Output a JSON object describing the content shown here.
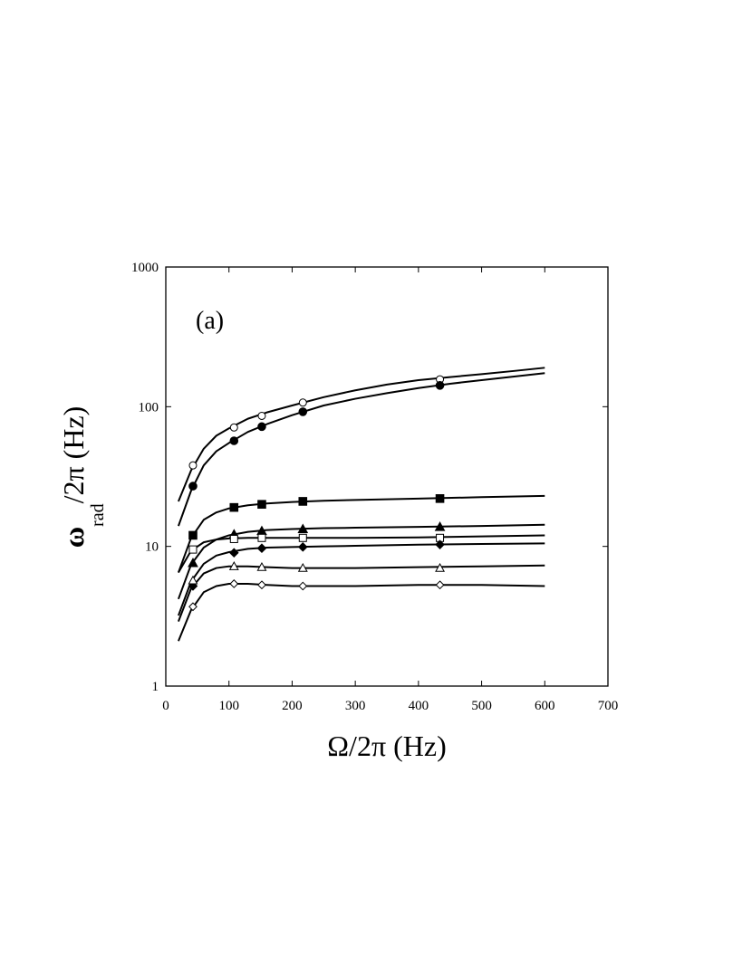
{
  "chart_data": {
    "type": "line",
    "panel_label": "(a)",
    "xlabel": "Ω/2π (Hz)",
    "ylabel_main": "ω",
    "ylabel_sub": "rad",
    "ylabel_rest": "/2π (Hz)",
    "xlim": [
      0,
      700
    ],
    "ylim": [
      1,
      1000
    ],
    "yscale": "log",
    "grid": false,
    "x_ticks": [
      0,
      100,
      200,
      300,
      400,
      500,
      600,
      700
    ],
    "x_tick_labels": [
      "0",
      "100",
      "200",
      "300",
      "400",
      "500",
      "600",
      "700"
    ],
    "y_ticks": [
      1,
      10,
      100,
      1000
    ],
    "y_tick_labels": [
      "1",
      "10",
      "100",
      "1000"
    ],
    "series": [
      {
        "marker": "circle-open",
        "points_x": [
          43,
          108,
          152,
          217,
          434
        ],
        "points_y": [
          38,
          71,
          86,
          107,
          157
        ],
        "curve_x": [
          20,
          40,
          60,
          80,
          100,
          130,
          160,
          200,
          250,
          300,
          350,
          400,
          450,
          500,
          550,
          600
        ],
        "curve_y": [
          21,
          35,
          50,
          62,
          70,
          82,
          91,
          102,
          117,
          131,
          144,
          155,
          163,
          171,
          180,
          190
        ]
      },
      {
        "marker": "circle-filled",
        "points_x": [
          43,
          108,
          152,
          217,
          434
        ],
        "points_y": [
          27,
          57,
          72,
          92,
          142
        ],
        "curve_x": [
          20,
          40,
          60,
          80,
          100,
          130,
          160,
          200,
          250,
          300,
          350,
          400,
          450,
          500,
          550,
          600
        ],
        "curve_y": [
          14,
          25,
          38,
          48,
          55,
          66,
          75,
          87,
          102,
          114,
          125,
          136,
          146,
          155,
          164,
          174
        ]
      },
      {
        "marker": "square-filled",
        "points_x": [
          43,
          108,
          152,
          217,
          434
        ],
        "points_y": [
          12,
          19,
          20,
          21,
          22
        ],
        "curve_x": [
          20,
          40,
          60,
          80,
          100,
          130,
          160,
          200,
          250,
          300,
          400,
          500,
          600
        ],
        "curve_y": [
          6.5,
          11.5,
          15.5,
          17.5,
          18.7,
          19.7,
          20.3,
          20.8,
          21.2,
          21.5,
          22.0,
          22.5,
          23.0
        ]
      },
      {
        "marker": "triangle-filled",
        "points_x": [
          43,
          108,
          152,
          217,
          434
        ],
        "points_y": [
          7.6,
          12.2,
          12.9,
          13.3,
          13.8
        ],
        "curve_x": [
          20,
          40,
          60,
          80,
          100,
          130,
          160,
          200,
          250,
          300,
          400,
          500,
          600
        ],
        "curve_y": [
          4.2,
          7.4,
          9.8,
          11.2,
          12.0,
          12.7,
          13.1,
          13.3,
          13.5,
          13.6,
          13.8,
          14.0,
          14.3
        ]
      },
      {
        "marker": "square-open",
        "points_x": [
          43,
          108,
          152,
          217,
          434
        ],
        "points_y": [
          9.5,
          11.3,
          11.5,
          11.5,
          11.5
        ],
        "curve_x": [
          20,
          40,
          60,
          80,
          100,
          130,
          160,
          200,
          250,
          300,
          400,
          500,
          600
        ],
        "curve_y": [
          6.5,
          9.3,
          10.7,
          11.2,
          11.4,
          11.5,
          11.5,
          11.5,
          11.5,
          11.5,
          11.6,
          11.8,
          12.0
        ]
      },
      {
        "marker": "diamond-filled",
        "points_x": [
          43,
          108,
          152,
          217,
          434
        ],
        "points_y": [
          5.2,
          9.0,
          9.7,
          9.9,
          10.3
        ],
        "curve_x": [
          20,
          40,
          60,
          80,
          100,
          130,
          160,
          200,
          250,
          300,
          400,
          500,
          600
        ],
        "curve_y": [
          3.2,
          5.6,
          7.5,
          8.6,
          9.1,
          9.6,
          9.8,
          9.9,
          10.0,
          10.1,
          10.3,
          10.4,
          10.5
        ]
      },
      {
        "marker": "triangle-open",
        "points_x": [
          43,
          108,
          152,
          217,
          434
        ],
        "points_y": [
          5.7,
          7.2,
          7.1,
          7.0,
          7.0
        ],
        "curve_x": [
          20,
          40,
          60,
          80,
          100,
          130,
          160,
          200,
          250,
          300,
          400,
          500,
          600
        ],
        "curve_y": [
          2.9,
          5.0,
          6.4,
          7.0,
          7.2,
          7.2,
          7.1,
          7.0,
          7.0,
          7.0,
          7.1,
          7.2,
          7.3
        ]
      },
      {
        "marker": "diamond-open",
        "points_x": [
          43,
          108,
          152,
          217,
          434
        ],
        "points_y": [
          3.7,
          5.4,
          5.3,
          5.2,
          5.3
        ],
        "curve_x": [
          20,
          40,
          60,
          80,
          100,
          130,
          160,
          200,
          250,
          300,
          400,
          500,
          600
        ],
        "curve_y": [
          2.1,
          3.5,
          4.7,
          5.2,
          5.4,
          5.4,
          5.3,
          5.2,
          5.2,
          5.2,
          5.3,
          5.3,
          5.2
        ]
      }
    ]
  }
}
